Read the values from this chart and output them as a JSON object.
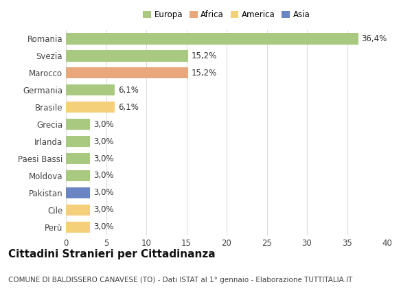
{
  "categories": [
    "Romania",
    "Svezia",
    "Marocco",
    "Germania",
    "Brasile",
    "Grecia",
    "Irlanda",
    "Paesi Bassi",
    "Moldova",
    "Pakistan",
    "Cile",
    "Perù"
  ],
  "values": [
    36.4,
    15.2,
    15.2,
    6.1,
    6.1,
    3.0,
    3.0,
    3.0,
    3.0,
    3.0,
    3.0,
    3.0
  ],
  "labels": [
    "36,4%",
    "15,2%",
    "15,2%",
    "6,1%",
    "6,1%",
    "3,0%",
    "3,0%",
    "3,0%",
    "3,0%",
    "3,0%",
    "3,0%",
    "3,0%"
  ],
  "colors": [
    "#a8c97f",
    "#a8c97f",
    "#e8a87c",
    "#a8c97f",
    "#f5d07a",
    "#a8c97f",
    "#a8c97f",
    "#a8c97f",
    "#a8c97f",
    "#6b84c4",
    "#f5d07a",
    "#f5d07a"
  ],
  "legend_labels": [
    "Europa",
    "Africa",
    "America",
    "Asia"
  ],
  "legend_colors": [
    "#a8c97f",
    "#e8a87c",
    "#f5d07a",
    "#6b84c4"
  ],
  "title": "Cittadini Stranieri per Cittadinanza",
  "subtitle": "COMUNE DI BALDISSERO CANAVESE (TO) - Dati ISTAT al 1° gennaio - Elaborazione TUTTITALIA.IT",
  "xlim": [
    0,
    40
  ],
  "xticks": [
    0,
    5,
    10,
    15,
    20,
    25,
    30,
    35,
    40
  ],
  "background_color": "#ffffff",
  "grid_color": "#dddddd",
  "bar_height": 0.65,
  "label_fontsize": 8.5,
  "tick_fontsize": 8.5,
  "title_fontsize": 11,
  "subtitle_fontsize": 7.5
}
